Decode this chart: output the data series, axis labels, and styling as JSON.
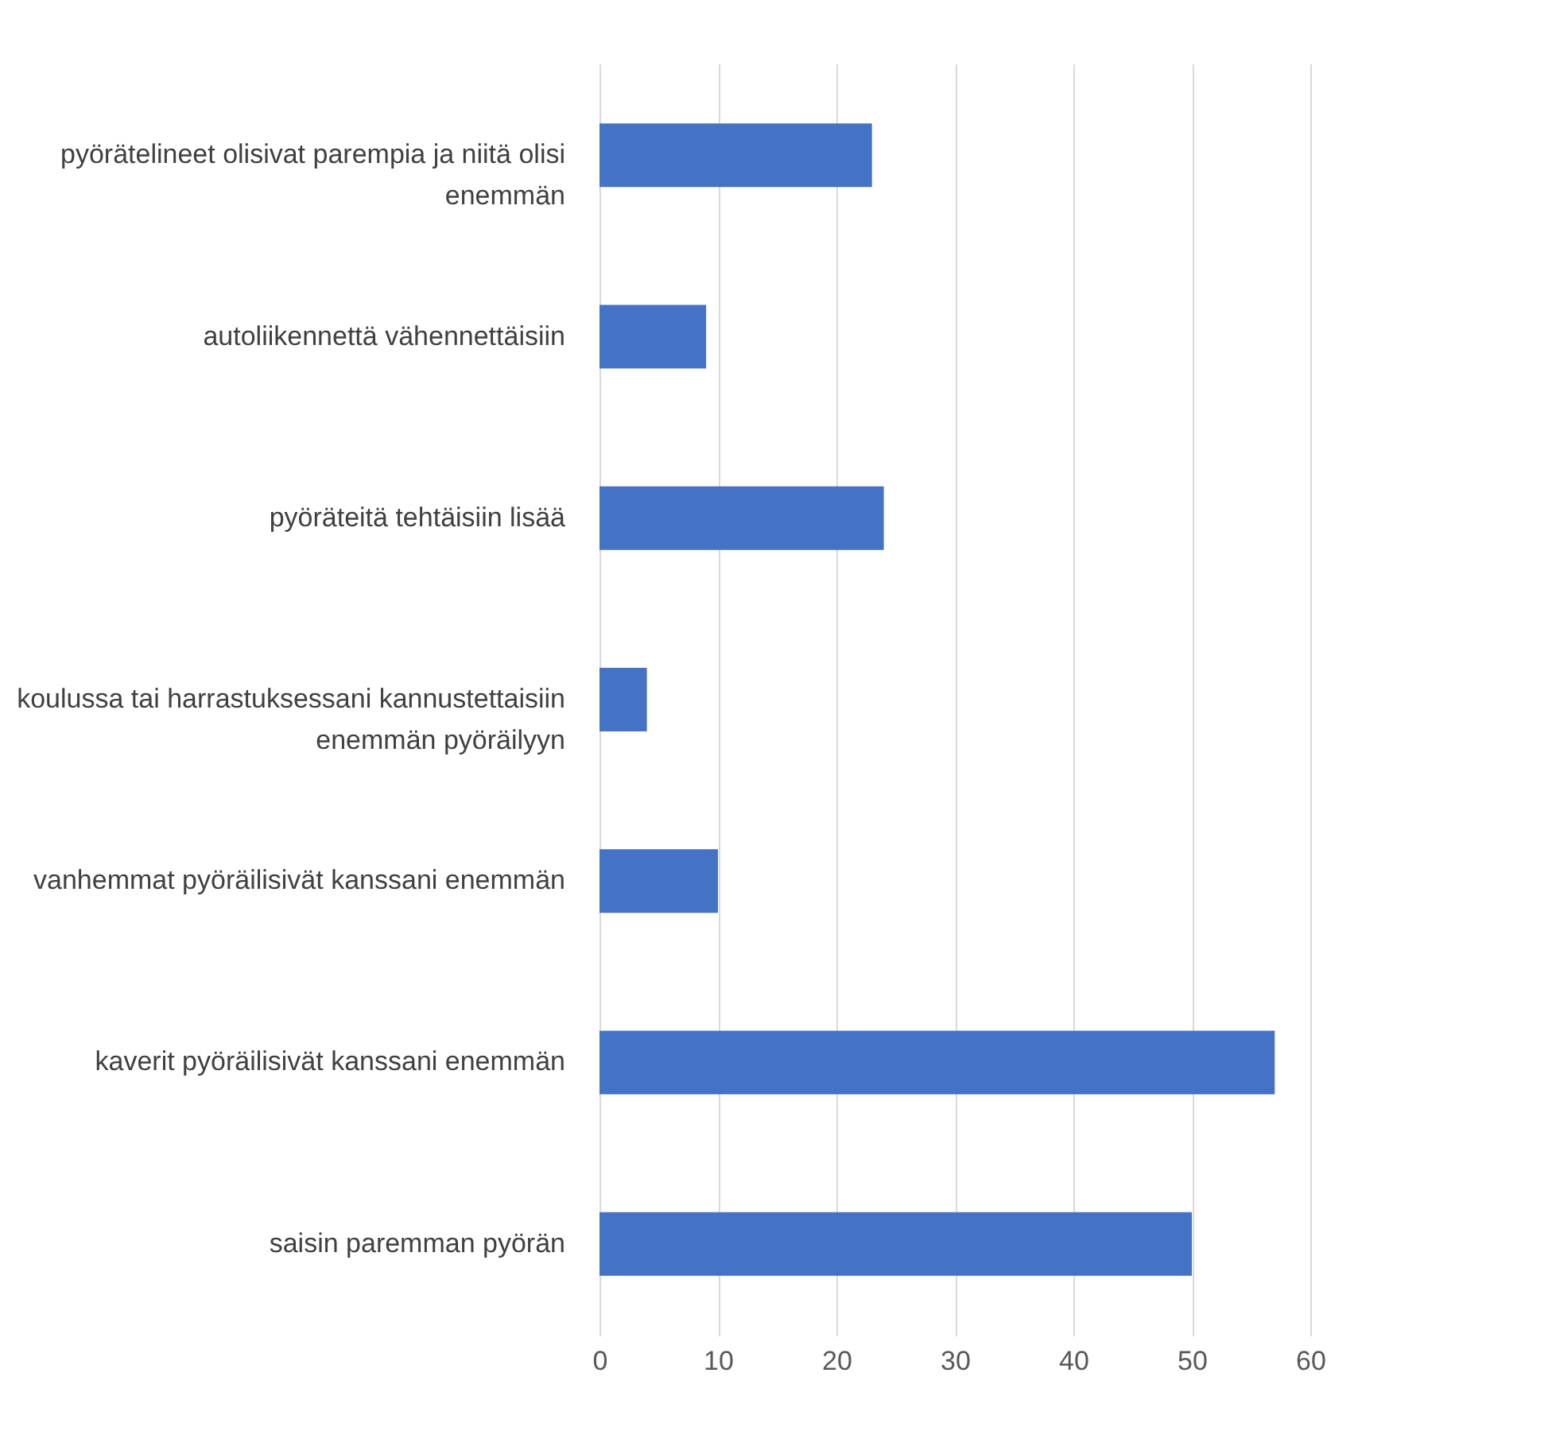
{
  "chart_data": {
    "type": "bar",
    "orientation": "horizontal",
    "categories": [
      "pyörätelineet olisivat parempia ja niitä olisi enemmän",
      "autoliikennettä vähennettäisiin",
      "pyöräteitä tehtäisiin lisää",
      "koulussa tai harrastuksessani kannustettaisiin enemmän pyöräilyyn",
      "vanhemmat pyöräilisivät kanssani enemmän",
      "kaverit pyöräilisivät kanssani enemmän",
      "saisin paremman pyörän"
    ],
    "values": [
      23,
      9,
      24,
      4,
      10,
      57,
      50
    ],
    "color": "#4472c4",
    "xlim": [
      0,
      60
    ],
    "xticks": [
      0,
      10,
      20,
      30,
      40,
      50,
      60
    ],
    "grid": "x"
  }
}
